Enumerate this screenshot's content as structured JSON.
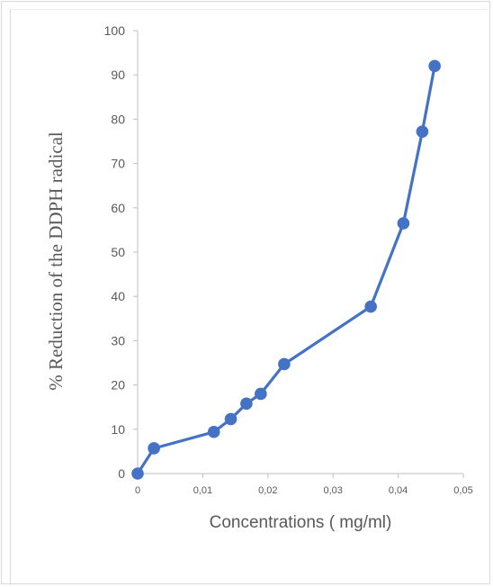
{
  "chart_data": {
    "type": "line",
    "xlabel": "Concentrations ( mg/ml)",
    "ylabel": "% Reduction of  the DDPH radical",
    "xlim": [
      0,
      0.05
    ],
    "ylim": [
      0,
      100
    ],
    "x_ticks": [
      "0",
      "0,01",
      "0,02",
      "0,03",
      "0,04",
      "0,05"
    ],
    "y_ticks": [
      "0",
      "10",
      "20",
      "30",
      "40",
      "50",
      "60",
      "70",
      "80",
      "90",
      "100"
    ],
    "grid": false,
    "legend": "none",
    "series": [
      {
        "color": "#4472c4",
        "points": [
          [
            0,
            0
          ],
          [
            0.0025,
            5.7
          ],
          [
            0.0117,
            9.4
          ],
          [
            0.0143,
            12.3
          ],
          [
            0.0167,
            15.8
          ],
          [
            0.0189,
            18.0
          ],
          [
            0.0225,
            24.7
          ],
          [
            0.0358,
            37.7
          ],
          [
            0.0408,
            56.5
          ],
          [
            0.0437,
            77.2
          ],
          [
            0.0456,
            92.0
          ]
        ]
      }
    ]
  }
}
